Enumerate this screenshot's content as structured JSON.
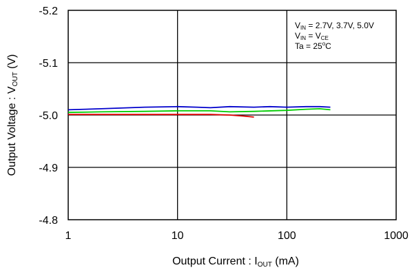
{
  "chart_data": {
    "type": "line",
    "title": "",
    "xlabel": {
      "prefix": "Output Current : I",
      "sub": "OUT",
      "suffix": "  (mA)"
    },
    "ylabel": {
      "prefix": "Output Voltage : V",
      "sub": "OUT",
      "suffix": " (V)"
    },
    "x_scale": "log",
    "xlim": [
      1,
      1000
    ],
    "ylim": [
      -4.8,
      -5.2
    ],
    "y_inverted": true,
    "x_ticks": [
      1,
      10,
      100,
      1000
    ],
    "x_tick_labels": [
      "1",
      "10",
      "100",
      "1000"
    ],
    "y_ticks": [
      -5.2,
      -5.1,
      -5.0,
      -4.9,
      -4.8
    ],
    "y_tick_labels": [
      "-5.2",
      "-5.1",
      "-5.0",
      "-4.9",
      "-4.8"
    ],
    "grid": true,
    "legend_location": "top-right",
    "conditions": [
      {
        "main": "V",
        "sub": "IN",
        "rest": " = 2.7V,  3.7V,  5.0V"
      },
      {
        "main": "V",
        "sub": "IN",
        "rest": " = V",
        "sub2": "CE"
      },
      {
        "main": "Ta = 25",
        "sup": "o",
        "rest": "C"
      }
    ],
    "series": [
      {
        "color": "#0000cc",
        "x": [
          1,
          2,
          5,
          10,
          15,
          20,
          30,
          50,
          70,
          100,
          150,
          200,
          250
        ],
        "y": [
          -5.01,
          -5.012,
          -5.015,
          -5.016,
          -5.015,
          -5.014,
          -5.016,
          -5.015,
          -5.016,
          -5.015,
          -5.016,
          -5.016,
          -5.015
        ]
      },
      {
        "color": "#00cc00",
        "x": [
          1,
          2,
          5,
          10,
          20,
          30,
          50,
          100,
          150,
          200,
          250
        ],
        "y": [
          -5.005,
          -5.006,
          -5.007,
          -5.008,
          -5.008,
          -5.006,
          -5.007,
          -5.009,
          -5.011,
          -5.012,
          -5.01
        ]
      },
      {
        "color": "#e00000",
        "x": [
          1,
          2,
          5,
          10,
          20,
          30,
          40,
          50
        ],
        "y": [
          -5.001,
          -5.001,
          -5.001,
          -5.001,
          -5.001,
          -5.0,
          -4.998,
          -4.996
        ]
      }
    ]
  }
}
